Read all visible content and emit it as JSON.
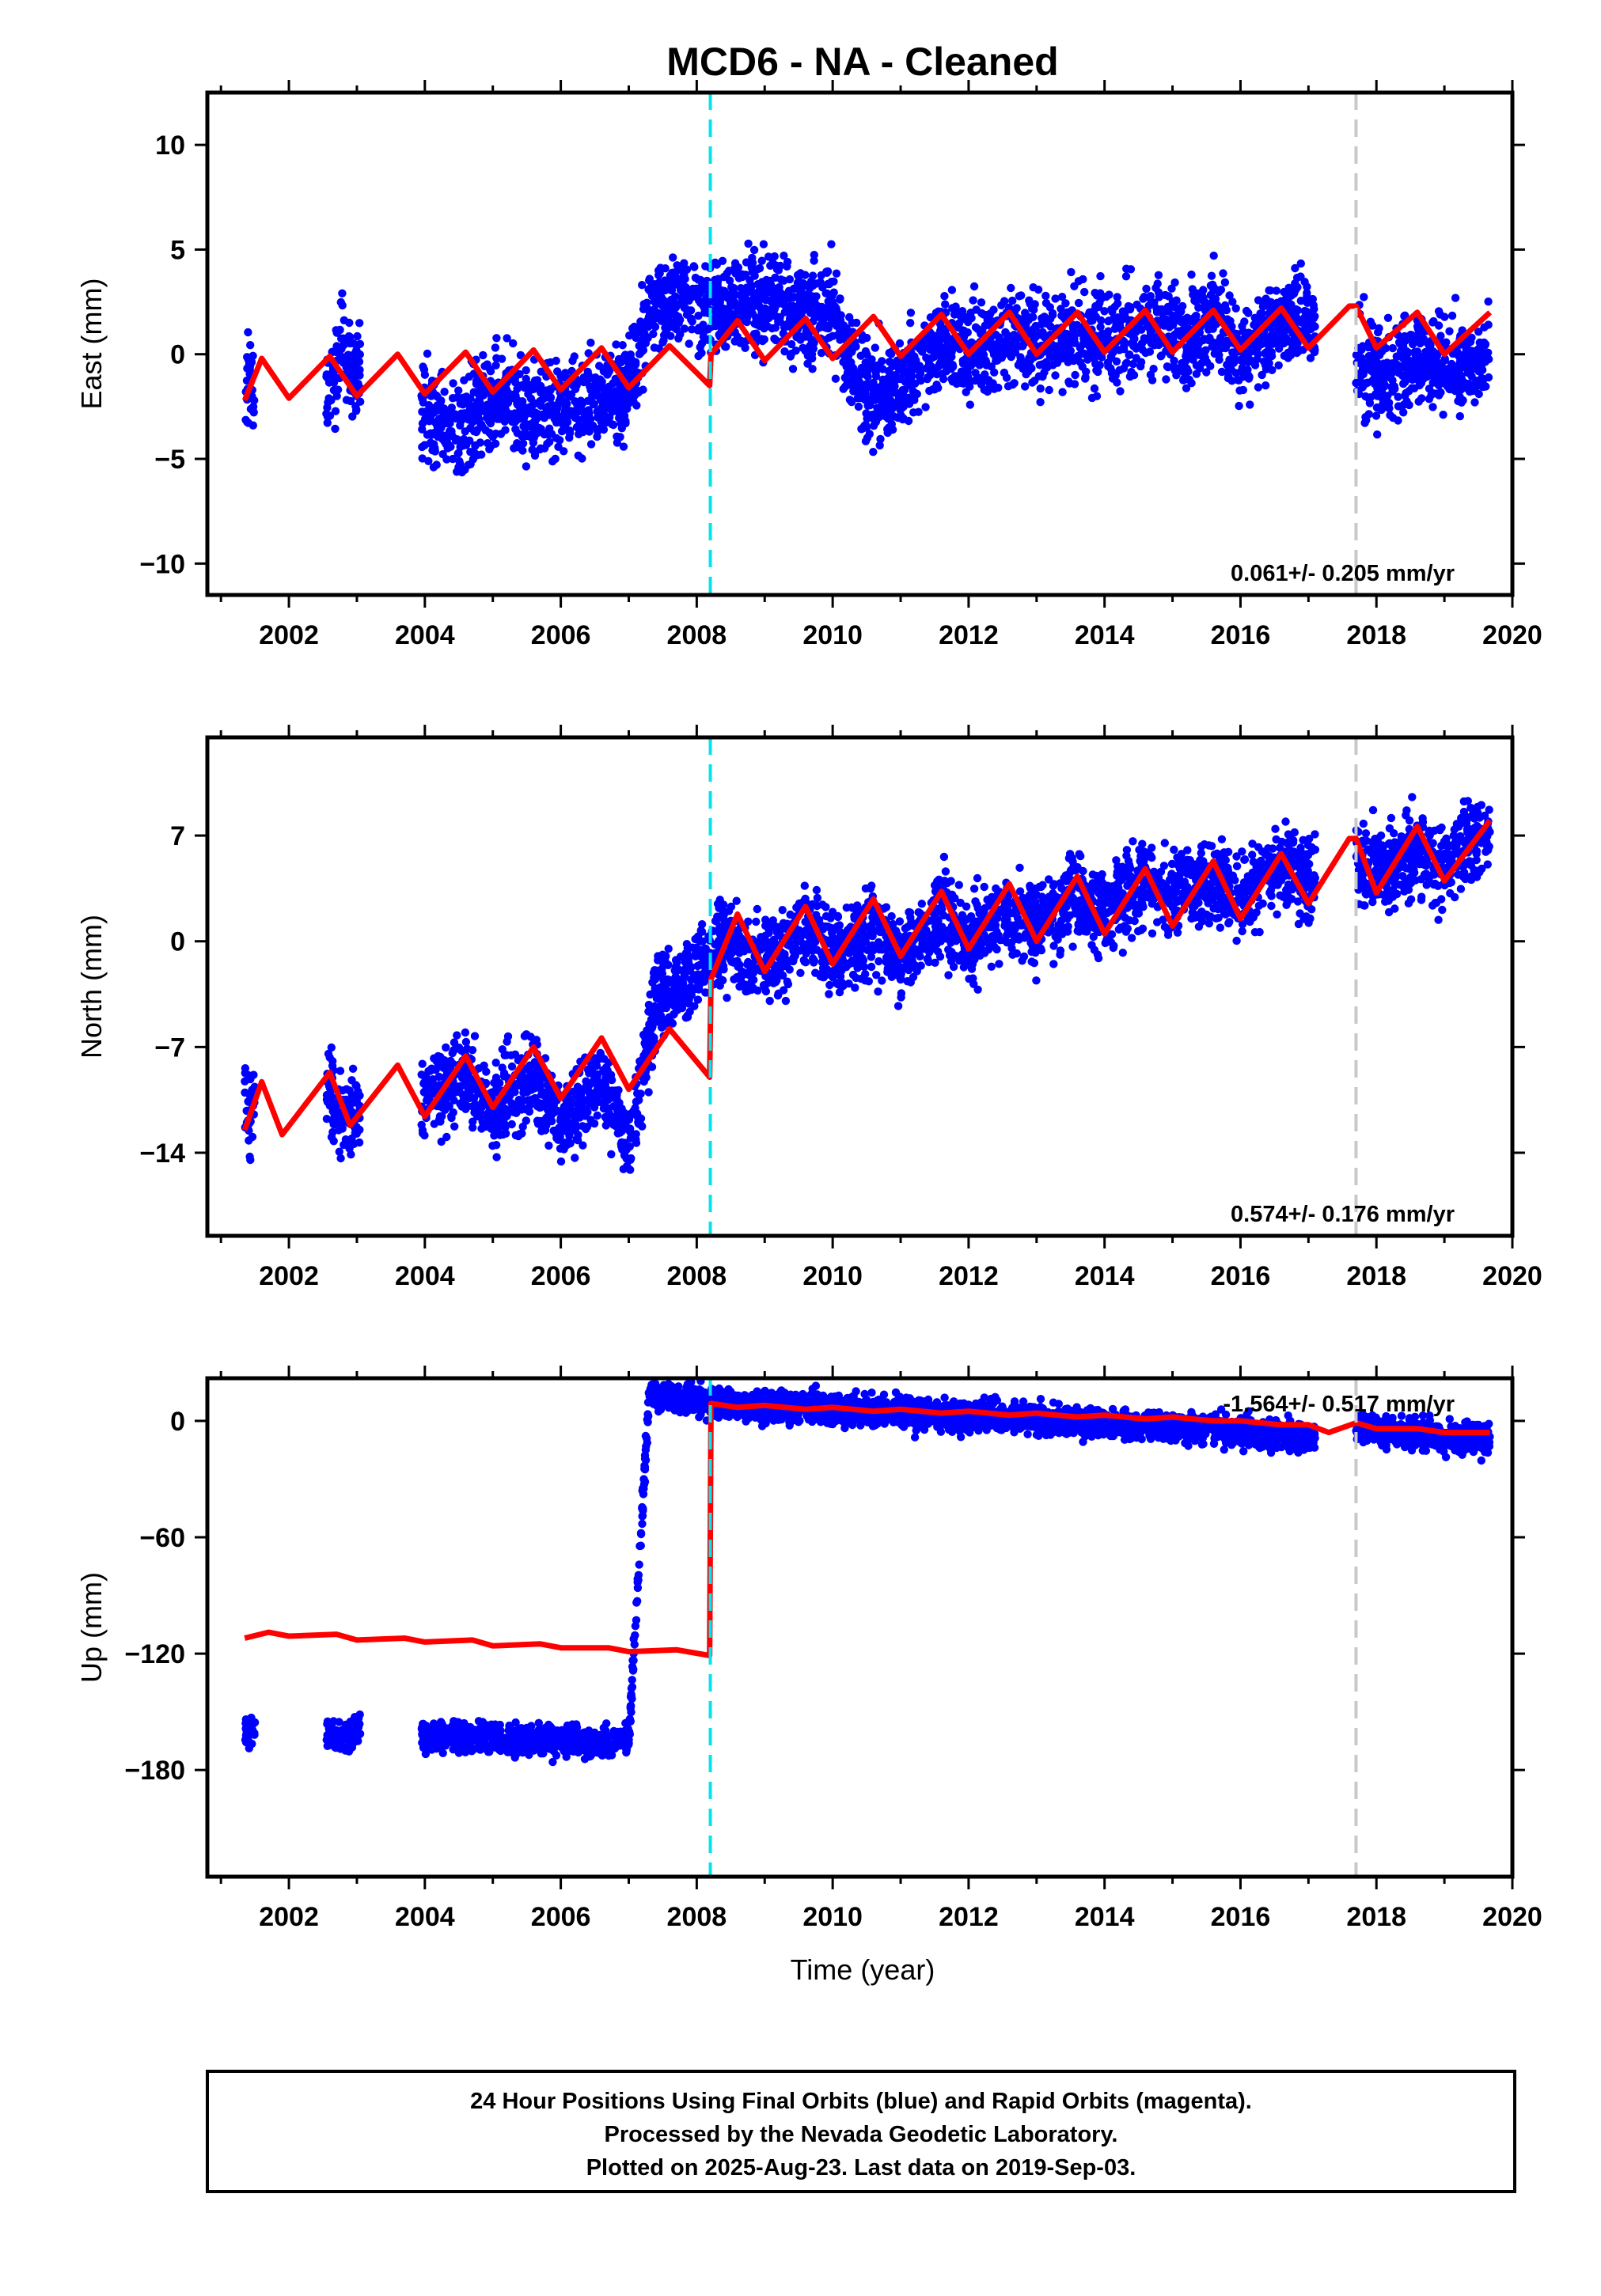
{
  "title": "MCD6  - NA - Cleaned",
  "colors": {
    "points": "#0000ff",
    "model": "#ff0000",
    "offset_equipment": "#00e5ee",
    "offset_other": "#c8c8c8",
    "frame": "#000000"
  },
  "xlabel": "Time (year)",
  "x_ticks": [
    "2002",
    "2004",
    "2006",
    "2008",
    "2010",
    "2012",
    "2014",
    "2016",
    "2018",
    "2020"
  ],
  "offset_lines": [
    {
      "type": "equipment",
      "year": 2008.2
    },
    {
      "type": "other",
      "year": 2017.7
    }
  ],
  "footer": {
    "line1": "24 Hour Positions Using Final Orbits (blue) and Rapid Orbits (magenta).",
    "line2": "Processed by the Nevada Geodetic Laboratory.",
    "line3": "Plotted on 2025-Aug-23. Last data on 2019-Sep-03."
  },
  "chart_data": [
    {
      "type": "scatter",
      "component": "East",
      "ylabel": "East (mm)",
      "xlim": [
        2000.8,
        2020.0
      ],
      "ylim": [
        -11.5,
        12.5
      ],
      "y_ticks": [
        10,
        5,
        0,
        -5,
        -10
      ],
      "y_tick_labels": [
        "10",
        "5",
        "0",
        "−5",
        "−10"
      ],
      "rate_text": "0.061+/- 0.205 mm/yr",
      "rate_position": "bottom-right",
      "data_spans": [
        [
          2001.35,
          2001.5
        ],
        [
          2002.55,
          2003.0
        ],
        [
          2003.95,
          2007.1
        ],
        [
          2007.1,
          2017.1
        ],
        [
          2017.7,
          2019.67
        ]
      ],
      "series": [
        {
          "style": "points",
          "x": [
            2001.4,
            2002.6,
            2002.8,
            2003.0,
            2004.2,
            2004.5,
            2004.8,
            2005.2,
            2005.6,
            2006.0,
            2006.5,
            2007.0,
            2007.3,
            2007.6,
            2008.0,
            2008.4,
            2008.8,
            2009.2,
            2009.6,
            2010.0,
            2010.4,
            2010.8,
            2011.2,
            2011.6,
            2012.0,
            2012.4,
            2012.8,
            2013.2,
            2013.6,
            2014.0,
            2014.4,
            2014.8,
            2015.2,
            2015.6,
            2016.0,
            2016.4,
            2016.8,
            2017.8,
            2018.2,
            2018.6,
            2019.0,
            2019.4,
            2019.6
          ],
          "y": [
            -1.5,
            -2.0,
            0.5,
            -1.0,
            -3.0,
            -4.0,
            -2.5,
            -2.0,
            -3.0,
            -2.5,
            -2.0,
            -1.5,
            2.0,
            2.5,
            2.5,
            2.0,
            2.5,
            2.5,
            2.0,
            2.0,
            -1.5,
            -2.0,
            -0.5,
            0.5,
            0.0,
            0.5,
            1.0,
            0.5,
            1.0,
            0.5,
            1.0,
            1.5,
            0.5,
            2.0,
            0.0,
            1.0,
            2.0,
            -0.5,
            -1.0,
            0.0,
            -0.5,
            -1.0,
            0.0
          ]
        },
        {
          "style": "line",
          "x": [
            2001.35,
            2001.6,
            2002.0,
            2002.6,
            2003.0,
            2003.6,
            2004.0,
            2004.6,
            2005.0,
            2005.6,
            2006.0,
            2006.6,
            2007.0,
            2007.6,
            2008.19,
            2008.21,
            2008.6,
            2009.0,
            2009.6,
            2010.0,
            2010.6,
            2011.0,
            2011.6,
            2012.0,
            2012.6,
            2013.0,
            2013.6,
            2014.0,
            2014.6,
            2015.0,
            2015.6,
            2016.0,
            2016.6,
            2017.0,
            2017.6,
            2017.7,
            2018.0,
            2018.6,
            2019.0,
            2019.67
          ],
          "y": [
            -2.2,
            -0.2,
            -2.1,
            -0.1,
            -2.0,
            0.0,
            -1.9,
            0.1,
            -1.8,
            0.2,
            -1.7,
            0.3,
            -1.6,
            0.4,
            -1.5,
            0.0,
            1.6,
            -0.3,
            1.7,
            -0.2,
            1.8,
            -0.1,
            1.9,
            0.0,
            2.0,
            0.0,
            2.0,
            0.1,
            2.1,
            0.1,
            2.1,
            0.2,
            2.2,
            0.3,
            2.3,
            2.3,
            0.3,
            2.0,
            0.0,
            2.0
          ]
        }
      ]
    },
    {
      "type": "scatter",
      "component": "North",
      "ylabel": "North (mm)",
      "xlim": [
        2000.8,
        2020.0
      ],
      "ylim": [
        -19.5,
        13.5
      ],
      "y_ticks": [
        7,
        0,
        -7,
        -14
      ],
      "y_tick_labels": [
        "7",
        "0",
        "−7",
        "−14"
      ],
      "rate_text": "0.574+/- 0.176 mm/yr",
      "rate_position": "bottom-right",
      "series": [
        {
          "style": "points",
          "x": [
            2001.4,
            2002.6,
            2002.8,
            2003.0,
            2004.2,
            2004.6,
            2005.0,
            2005.6,
            2006.0,
            2006.6,
            2007.0,
            2007.4,
            2007.8,
            2008.4,
            2008.8,
            2009.2,
            2009.6,
            2010.0,
            2010.6,
            2011.0,
            2011.6,
            2012.0,
            2012.6,
            2013.0,
            2013.6,
            2014.0,
            2014.6,
            2015.0,
            2015.6,
            2016.0,
            2016.6,
            2017.0,
            2017.8,
            2018.2,
            2018.6,
            2019.0,
            2019.6
          ],
          "y": [
            -11,
            -10,
            -12,
            -11,
            -10,
            -9,
            -11,
            -9,
            -12,
            -9,
            -14,
            -4,
            -3,
            0,
            -1,
            -1,
            1,
            -1,
            1,
            -1,
            2,
            0,
            2,
            1,
            3,
            2,
            4,
            3,
            4,
            3,
            5,
            4,
            5,
            5,
            6,
            5,
            7
          ]
        },
        {
          "style": "line",
          "x": [
            2001.35,
            2001.6,
            2001.9,
            2002.6,
            2002.9,
            2003.6,
            2004.0,
            2004.6,
            2005.0,
            2005.6,
            2006.0,
            2006.6,
            2007.0,
            2007.6,
            2008.19,
            2008.21,
            2008.6,
            2009.0,
            2009.6,
            2010.0,
            2010.6,
            2011.0,
            2011.6,
            2012.0,
            2012.6,
            2013.0,
            2013.6,
            2014.0,
            2014.6,
            2015.0,
            2015.6,
            2016.0,
            2016.6,
            2017.0,
            2017.6,
            2017.7,
            2018.0,
            2018.6,
            2019.0,
            2019.67
          ],
          "y": [
            -12.5,
            -9.3,
            -12.8,
            -8.7,
            -12.2,
            -8.2,
            -11.6,
            -7.6,
            -11.0,
            -7.0,
            -10.4,
            -6.4,
            -9.8,
            -5.8,
            -9.0,
            -2.5,
            1.8,
            -2.0,
            2.3,
            -1.5,
            2.8,
            -1.0,
            3.3,
            -0.5,
            3.8,
            0.0,
            4.3,
            0.5,
            4.8,
            1.0,
            5.3,
            1.5,
            5.8,
            2.5,
            6.8,
            6.8,
            3.2,
            7.6,
            4.0,
            8.0
          ]
        }
      ]
    },
    {
      "type": "scatter",
      "component": "Up",
      "ylabel": "Up (mm)",
      "xlim": [
        2000.8,
        2020.0
      ],
      "ylim": [
        -235,
        22
      ],
      "y_ticks": [
        0,
        -60,
        -120,
        -180
      ],
      "y_tick_labels": [
        "0",
        "−60",
        "−120",
        "−180"
      ],
      "rate_text": "-1.564+/- 0.517 mm/yr",
      "rate_position": "top-right",
      "series": [
        {
          "style": "points",
          "x": [
            2001.4,
            2002.6,
            2002.8,
            2003.0,
            2004.2,
            2004.6,
            2005.0,
            2005.6,
            2006.0,
            2006.6,
            2007.0,
            2007.3,
            2007.6,
            2008.0,
            2008.4,
            2008.8,
            2009.2,
            2009.6,
            2010.0,
            2010.6,
            2011.0,
            2011.6,
            2012.0,
            2012.6,
            2013.0,
            2013.6,
            2014.0,
            2014.6,
            2015.0,
            2015.6,
            2016.0,
            2016.6,
            2017.0,
            2017.8,
            2018.2,
            2018.6,
            2019.0,
            2019.6
          ],
          "y": [
            -160,
            -160,
            -165,
            -158,
            -162,
            -163,
            -164,
            -165,
            -164,
            -166,
            -164,
            14,
            12,
            10,
            10,
            8,
            7,
            8,
            6,
            5,
            4,
            3,
            2,
            2,
            1,
            0,
            -1,
            -2,
            -3,
            -4,
            -6,
            -8,
            -9,
            -4,
            -6,
            -6,
            -8,
            -9
          ]
        },
        {
          "style": "line",
          "x": [
            2001.35,
            2001.7,
            2002.0,
            2002.7,
            2003.0,
            2003.7,
            2004.0,
            2004.7,
            2005.0,
            2005.7,
            2006.0,
            2006.7,
            2007.0,
            2007.7,
            2008.19,
            2008.21,
            2008.6,
            2009.0,
            2009.6,
            2010.0,
            2010.6,
            2011.0,
            2011.6,
            2012.0,
            2012.6,
            2013.0,
            2013.6,
            2014.0,
            2014.6,
            2015.0,
            2015.6,
            2016.0,
            2016.6,
            2017.0,
            2017.3,
            2017.7,
            2018.0,
            2018.6,
            2019.0,
            2019.67
          ],
          "y": [
            -112,
            -109,
            -111,
            -110,
            -113,
            -112,
            -114,
            -113,
            -116,
            -115,
            -117,
            -117,
            -119,
            -118,
            -121,
            9,
            7,
            8,
            6,
            7,
            5,
            6,
            4,
            5,
            3,
            4,
            2,
            3,
            1,
            2,
            0,
            0,
            -2,
            -2,
            -6,
            -1,
            -4,
            -4,
            -6,
            -6
          ]
        }
      ]
    }
  ]
}
